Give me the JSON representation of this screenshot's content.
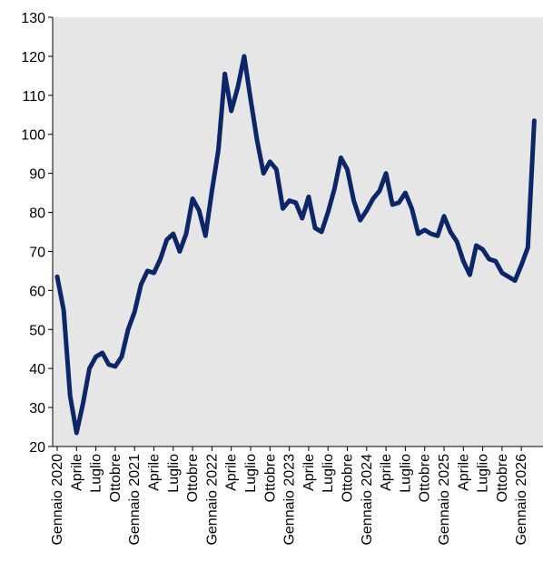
{
  "chart_data": {
    "type": "line",
    "title": "",
    "xlabel": "",
    "ylabel": "",
    "ylim": [
      20,
      130
    ],
    "yticks": [
      20,
      30,
      40,
      50,
      60,
      70,
      80,
      90,
      100,
      110,
      120,
      130
    ],
    "x_tick_labels": [
      "Gennaio 2020",
      "Aprile",
      "Luglio",
      "Ottobre",
      "Gennaio 2021",
      "Aprile",
      "Luglio",
      "Ottobre",
      "Gennaio 2022",
      "Aprile",
      "Luglio",
      "Ottobre",
      "Gennaio 2023",
      "Aprile",
      "Luglio",
      "Ottobre",
      "Gennaio 2024",
      "Aprile",
      "Luglio",
      "Ottobre",
      "Gennaio 2025",
      "Aprile",
      "Luglio",
      "Ottobre",
      "Gennaio 2026"
    ],
    "grid": false,
    "background_color": "#e6e6e6",
    "line_color": "#0c2668",
    "series": [
      {
        "values": [
          63.5,
          55,
          33,
          23.5,
          31,
          40,
          43,
          44,
          41,
          40.5,
          43,
          50,
          54.5,
          61.5,
          65,
          64.5,
          68,
          73,
          74.5,
          70,
          74.5,
          83.5,
          80.5,
          74,
          85.5,
          96,
          115.5,
          106,
          112,
          120,
          109,
          98.5,
          90,
          93,
          91,
          81,
          83,
          82.5,
          78.5,
          84,
          76,
          75,
          80,
          86,
          94,
          91,
          83,
          78,
          80.5,
          83.5,
          85.5,
          90,
          82,
          82.5,
          85,
          81,
          74.5,
          75.5,
          74.5,
          74,
          79,
          75,
          72.5,
          67.5,
          64,
          71.5,
          70.5,
          68,
          67.5,
          64.5,
          63.5,
          62.5,
          66.5,
          71,
          103.5
        ]
      }
    ]
  }
}
